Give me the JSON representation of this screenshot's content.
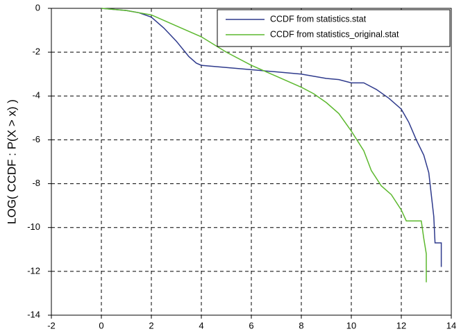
{
  "chart_data": {
    "type": "line",
    "y_label": "LOG( CCDF : P(X > x) )",
    "xlim": [
      -2,
      14
    ],
    "xticks": [
      -2,
      0,
      2,
      4,
      6,
      8,
      10,
      12,
      14
    ],
    "ylim": [
      -14,
      0
    ],
    "yticks": [
      0,
      -2,
      -4,
      -6,
      -8,
      -10,
      -12,
      -14
    ],
    "grid": true,
    "legend": "upper right",
    "series": [
      {
        "name": "CCDF from  statistics.stat",
        "color": "#2e3a8c",
        "x": [
          0,
          1,
          1.5,
          2,
          2.5,
          3,
          3.5,
          3.8,
          4,
          5,
          6,
          7,
          8,
          9,
          9.5,
          10,
          10.5,
          11,
          11.5,
          12,
          12.3,
          12.6,
          12.9,
          13.1,
          13.2,
          13.3,
          13.35,
          13.6,
          13.6
        ],
        "values": [
          0,
          -0.1,
          -0.2,
          -0.4,
          -0.9,
          -1.5,
          -2.2,
          -2.5,
          -2.6,
          -2.7,
          -2.8,
          -2.9,
          -3.0,
          -3.2,
          -3.25,
          -3.4,
          -3.4,
          -3.7,
          -4.1,
          -4.6,
          -5.2,
          -6.0,
          -6.7,
          -7.5,
          -8.5,
          -9.5,
          -10.7,
          -10.7,
          -11.8
        ]
      },
      {
        "name": "CCDF from  statistics_original.stat",
        "color": "#5cb82e",
        "x": [
          0,
          1,
          1.5,
          2,
          3,
          4,
          5,
          6,
          7,
          8,
          8.5,
          9,
          9.5,
          10,
          10.5,
          10.8,
          11.2,
          11.6,
          12,
          12.2,
          12.8,
          12.9,
          13.0,
          13.0
        ],
        "values": [
          0,
          -0.1,
          -0.2,
          -0.3,
          -0.8,
          -1.3,
          -2.0,
          -2.6,
          -3.1,
          -3.6,
          -3.9,
          -4.3,
          -4.8,
          -5.6,
          -6.5,
          -7.4,
          -8.1,
          -8.5,
          -9.2,
          -9.7,
          -9.7,
          -10.5,
          -11.2,
          -12.5
        ]
      }
    ]
  }
}
